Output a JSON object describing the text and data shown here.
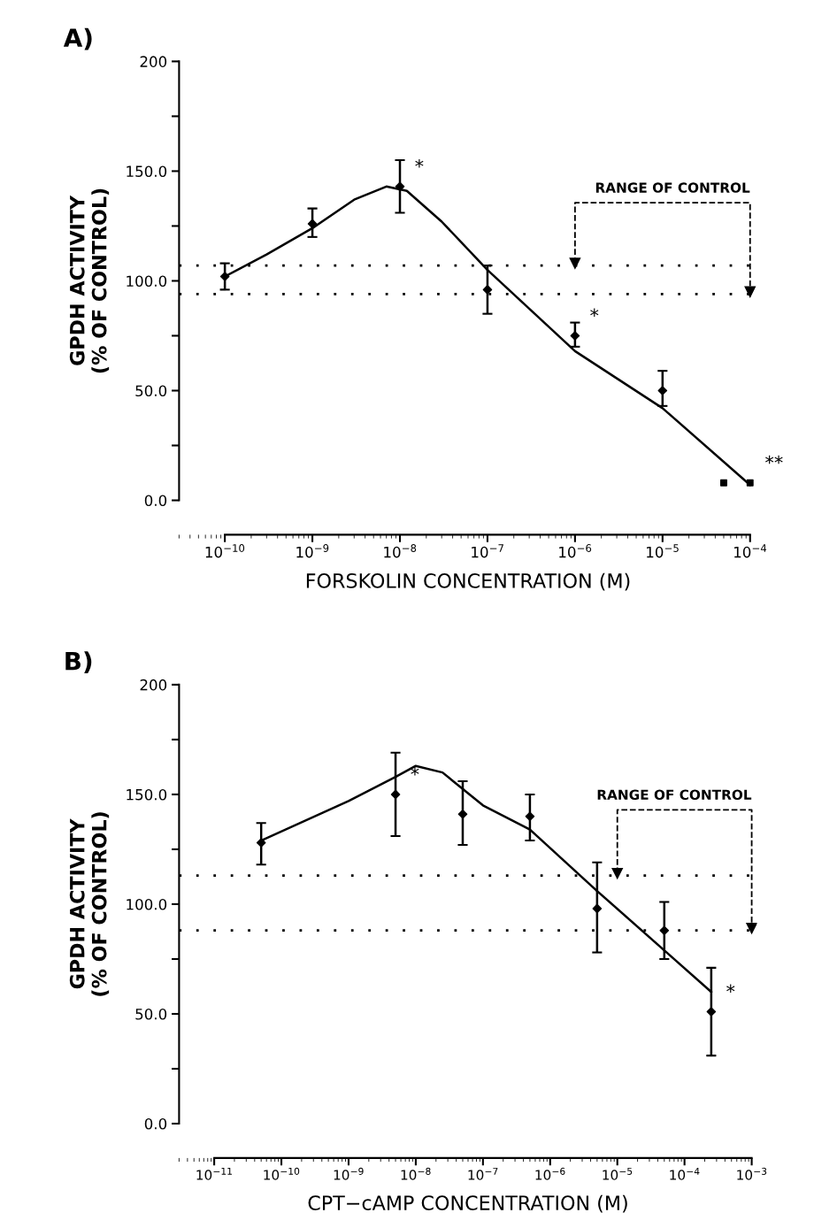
{
  "chart_data": [
    {
      "type": "scatter",
      "title": "A)",
      "xlabel": "FORSKOLIN CONCENTRATION (M)",
      "ylabel": "GPDH ACTIVITY\n(% OF CONTROL)",
      "log": "x",
      "xlim": [
        3e-11,
        0.00012
      ],
      "ylim": [
        0,
        200
      ],
      "xticks": [
        {
          "value": 1e-10,
          "label": "10$^{−10}$"
        },
        {
          "value": 1e-09,
          "label": "10$^{−9}$"
        },
        {
          "value": 1e-08,
          "label": "10$^{−8}$"
        },
        {
          "value": 1e-07,
          "label": "10$^{−7}$"
        },
        {
          "value": 1e-06,
          "label": "10$^{−6}$"
        },
        {
          "value": 1e-05,
          "label": "10$^{−5}$"
        },
        {
          "value": 0.0001,
          "label": "10$^{−4}$"
        }
      ],
      "yticks": [
        {
          "value": 0,
          "label": "0.0"
        },
        {
          "value": 25,
          "label": null
        },
        {
          "value": 50,
          "label": "50.0"
        },
        {
          "value": 75,
          "label": null
        },
        {
          "value": 100,
          "label": "100.0"
        },
        {
          "value": 125,
          "label": null
        },
        {
          "value": 150,
          "label": "150.0"
        },
        {
          "value": 175,
          "label": null
        },
        200
      ],
      "series": [
        {
          "marker": "diamond",
          "color": "#000000",
          "x": [
            1e-10,
            1e-09,
            1e-08,
            1e-07,
            1e-06,
            1e-05
          ],
          "values": [
            102,
            126,
            143,
            96,
            75,
            50
          ],
          "errors": [
            [
              96,
              108
            ],
            [
              120,
              133
            ],
            [
              131,
              155
            ],
            [
              85,
              107
            ],
            [
              70,
              81
            ],
            [
              43,
              59
            ]
          ]
        },
        {
          "type": "scatter",
          "marker": "square",
          "color": "#000000",
          "x": [
            5e-05,
            0.0001
          ],
          "values": [
            8,
            8
          ]
        },
        {
          "type": "line",
          "marker": "none",
          "line_style": "solid",
          "color": "#000000",
          "x": [
            1e-10,
            3e-10,
            1e-09,
            3e-09,
            7e-09,
            1.2e-08,
            3e-08,
            1e-07,
            1e-06,
            1e-05,
            0.0001
          ],
          "values": [
            102,
            112,
            124,
            137,
            143,
            141,
            127,
            105,
            68,
            42,
            7
          ]
        }
      ],
      "ref_lines": [
        {
          "axis": "y",
          "value": 107,
          "line_style": "dotted",
          "color": "#000000"
        },
        {
          "axis": "y",
          "value": 94,
          "line_style": "dotted",
          "color": "#000000"
        }
      ],
      "annotations": [
        "RANGE OF CONTROL",
        {
          "text": "*",
          "x": 1e-08,
          "y": 143
        },
        {
          "text": "*",
          "x": 1e-06,
          "y": 75
        },
        {
          "text": "**",
          "x": 0.0001,
          "y": 8
        }
      ]
    },
    {
      "type": "scatter",
      "title": "B)",
      "xlabel": "CPT−cAMP CONCENTRATION (M)",
      "ylabel": "GPDH ACTIVITY\n(% OF CONTROL)",
      "log": "x",
      "xlim": [
        3e-12,
        0.0012
      ],
      "ylim": [
        0,
        200
      ],
      "xticks": [
        {
          "value": 1e-11,
          "label": "10$^{−11}$"
        },
        {
          "value": 1e-10,
          "label": "10$^{−10}$"
        },
        {
          "value": 1e-09,
          "label": "10$^{−9}$"
        },
        {
          "value": 1e-08,
          "label": "10$^{−8}$"
        },
        {
          "value": 1e-07,
          "label": "10$^{−7}$"
        },
        {
          "value": 1e-06,
          "label": "10$^{−6}$"
        },
        {
          "value": 1e-05,
          "label": "10$^{−5}$"
        },
        {
          "value": 0.0001,
          "label": "10$^{−4}$"
        },
        {
          "value": 0.001,
          "label": "10$^{−3}$"
        }
      ],
      "yticks": [
        {
          "value": 0,
          "label": "0.0"
        },
        {
          "value": 25,
          "label": null
        },
        {
          "value": 50,
          "label": "50.0"
        },
        {
          "value": 75,
          "label": null
        },
        {
          "value": 100,
          "label": "100.0"
        },
        {
          "value": 125,
          "label": null
        },
        {
          "value": 150,
          "label": "150.0"
        },
        {
          "value": 175,
          "label": null
        },
        200
      ],
      "series": [
        {
          "marker": "diamond",
          "color": "#000000",
          "x": [
            5e-11,
            5e-09,
            5e-08,
            5e-07,
            5e-06,
            5e-05,
            0.00025
          ],
          "values": [
            128,
            150,
            141,
            140,
            98,
            88,
            51
          ],
          "errors": [
            [
              118,
              137
            ],
            [
              131,
              169
            ],
            [
              127,
              156
            ],
            [
              129,
              150
            ],
            [
              78,
              119
            ],
            [
              75,
              101
            ],
            [
              31,
              71
            ]
          ]
        },
        {
          "type": "line",
          "marker": "none",
          "line_style": "solid",
          "color": "#000000",
          "x": [
            5e-11,
            1e-09,
            5e-09,
            1e-08,
            2.5e-08,
            1e-07,
            5e-07,
            5e-06,
            0.00025
          ],
          "values": [
            129,
            147,
            158,
            163,
            160,
            145,
            134,
            106,
            60
          ]
        }
      ],
      "ref_lines": [
        {
          "axis": "y",
          "value": 113,
          "line_style": "dotted",
          "color": "#000000"
        },
        {
          "axis": "y",
          "value": 88,
          "line_style": "dotted",
          "color": "#000000"
        }
      ],
      "annotations": [
        "RANGE OF CONTROL",
        {
          "text": "*",
          "x": 5e-09,
          "y": 150
        },
        {
          "text": "*",
          "x": 0.00025,
          "y": 51
        }
      ]
    }
  ]
}
